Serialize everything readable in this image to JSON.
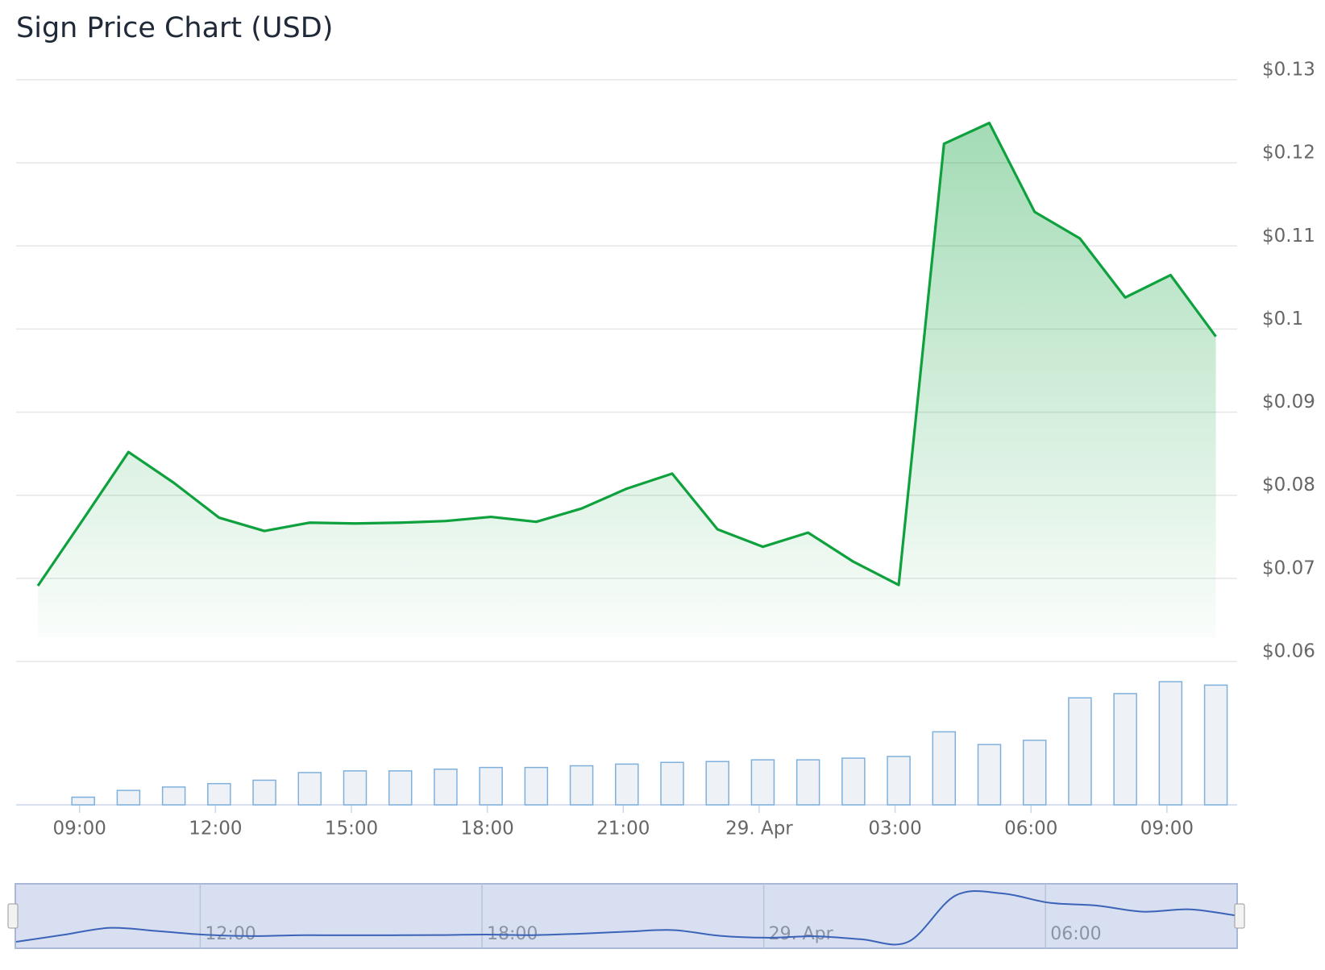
{
  "chart_data": {
    "type": "line",
    "title": "Sign Price Chart (USD)",
    "x": [
      8.08,
      9.08,
      10.08,
      11.08,
      12.08,
      13.08,
      14.08,
      15.08,
      16.08,
      17.08,
      18.08,
      19.08,
      20.08,
      21.08,
      22.08,
      23.08,
      24.08,
      25.08,
      26.08,
      27.08,
      28.08,
      29.08,
      30.08,
      31.08,
      32.08,
      33.08,
      34.08
    ],
    "series": [
      {
        "color": "#0ea13d",
        "values": [
          0.0691,
          0.0771,
          0.0852,
          0.0815,
          0.0773,
          0.0757,
          0.0767,
          0.0766,
          0.0767,
          0.0769,
          0.0774,
          0.0768,
          0.0784,
          0.0808,
          0.0826,
          0.0759,
          0.0738,
          0.0755,
          0.072,
          0.0692,
          0.1223,
          0.1248,
          0.1141,
          0.1109,
          0.1038,
          0.1065,
          0.0991
        ]
      }
    ],
    "volume": {
      "color": "#7fb0dc",
      "values": [
        null,
        9,
        17,
        21,
        25,
        29,
        38,
        40,
        40,
        42,
        44,
        44,
        46,
        48,
        50,
        51,
        53,
        53,
        55,
        57,
        86,
        71,
        76,
        126,
        131,
        145,
        141
      ]
    },
    "xlim": [
      7.6,
      34.55
    ],
    "xticks": [
      {
        "value": 9,
        "label": "09:00"
      },
      {
        "value": 12,
        "label": "12:00"
      },
      {
        "value": 15,
        "label": "15:00"
      },
      {
        "value": 18,
        "label": "18:00"
      },
      {
        "value": 21,
        "label": "21:00"
      },
      {
        "value": 24,
        "label": "29. Apr"
      },
      {
        "value": 27,
        "label": "03:00"
      },
      {
        "value": 30,
        "label": "06:00"
      },
      {
        "value": 33,
        "label": "09:00"
      }
    ],
    "ylim": [
      0.06,
      0.13
    ],
    "yticks": [
      {
        "value": 0.06,
        "label": "$0.06"
      },
      {
        "value": 0.07,
        "label": "$0.07"
      },
      {
        "value": 0.08,
        "label": "$0.08"
      },
      {
        "value": 0.09,
        "label": "$0.09"
      },
      {
        "value": 0.1,
        "label": "$0.1"
      },
      {
        "value": 0.11,
        "label": "$0.11"
      },
      {
        "value": 0.12,
        "label": "$0.12"
      },
      {
        "value": 0.13,
        "label": "$0.13"
      }
    ],
    "grid": true,
    "navigator": {
      "xlim": [
        8.08,
        34.08
      ],
      "xticks": [
        {
          "value": 12,
          "label": "12:00"
        },
        {
          "value": 18,
          "label": "18:00"
        },
        {
          "value": 24,
          "label": "29. Apr"
        },
        {
          "value": 30,
          "label": "06:00"
        }
      ]
    }
  }
}
